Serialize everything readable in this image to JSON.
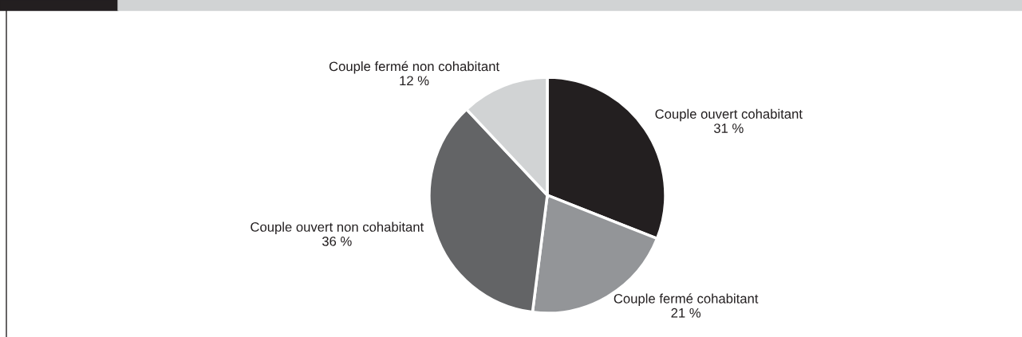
{
  "chart_data": {
    "type": "pie",
    "categories": [
      "Couple ouvert cohabitant",
      "Couple fermé cohabitant",
      "Couple ouvert non cohabitant",
      "Couple fermé non cohabitant"
    ],
    "values": [
      31,
      21,
      36,
      12
    ],
    "value_labels": [
      "31 %",
      "21 %",
      "36 %",
      "12 %"
    ],
    "colors": [
      "#231f20",
      "#939598",
      "#636466",
      "#d1d3d4"
    ]
  }
}
